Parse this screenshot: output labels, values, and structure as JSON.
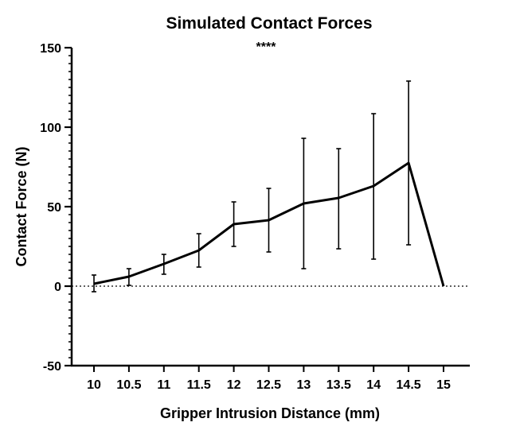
{
  "chart_data": {
    "type": "line",
    "title": "Simulated Contact Forces",
    "annotation": "****",
    "xlabel": "Gripper Intrusion Distance (mm)",
    "ylabel": "Contact Force (N)",
    "x_ticks": [
      "10",
      "10.5",
      "11",
      "11.5",
      "12",
      "12.5",
      "13",
      "13.5",
      "14",
      "14.5",
      "15"
    ],
    "y_ticks": [
      "-50",
      "0",
      "50",
      "100",
      "150"
    ],
    "ylim": [
      -50,
      150
    ],
    "xlim": [
      10,
      15
    ],
    "y_minor_step": 5,
    "reference_line": {
      "y": 0,
      "style": "dotted"
    },
    "series": [
      {
        "x": [
          10,
          10.5,
          11,
          11.5,
          12,
          12.5,
          13,
          13.5,
          14,
          14.5,
          15
        ],
        "values": [
          1.5,
          6,
          14,
          22.5,
          39,
          41.5,
          52,
          55.5,
          63,
          77.5,
          0
        ],
        "error_upper": [
          7,
          11,
          20,
          33,
          53,
          61.5,
          93,
          86.5,
          108.5,
          129,
          null
        ],
        "error_lower": [
          -3.5,
          0.5,
          7.5,
          12,
          25,
          21.5,
          11,
          23.5,
          17,
          26,
          null
        ],
        "color": "#000000"
      }
    ]
  }
}
